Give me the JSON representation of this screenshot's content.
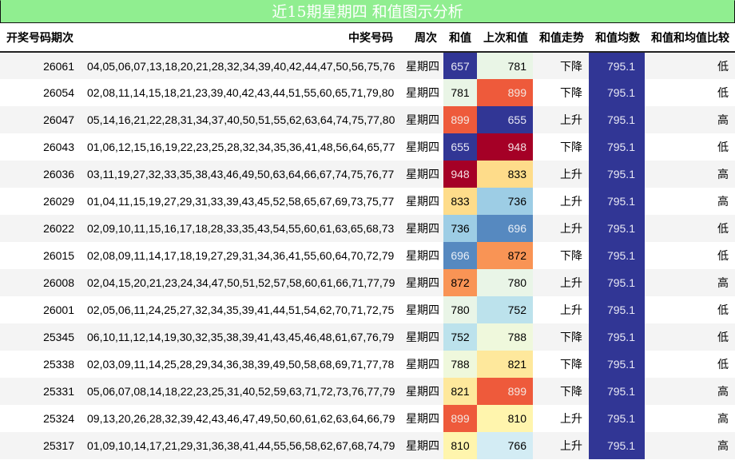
{
  "title": "近15期星期四 和值图示分析",
  "headers": {
    "period": "开奖号码期次",
    "numbers": "中奖号码",
    "weekday": "周次",
    "sum": "和值",
    "prev_sum": "上次和值",
    "trend": "和值走势",
    "mean": "和值均数",
    "compare": "和值和均值比较"
  },
  "rows": [
    {
      "period": "26061",
      "numbers": "04,05,06,07,13,18,20,21,28,32,34,39,40,42,44,47,50,56,75,76",
      "weekday": "星期四",
      "sum": "657",
      "sum_bg": "#313695",
      "sum_fg": "#e8e8f4",
      "prev_sum": "781",
      "prev_bg": "#e9f5e6",
      "prev_fg": "#000000",
      "trend": "下降",
      "mean": "795.1",
      "compare": "低"
    },
    {
      "period": "26054",
      "numbers": "02,08,11,14,15,18,21,23,39,40,42,43,44,51,55,60,65,71,79,80",
      "weekday": "星期四",
      "sum": "781",
      "sum_bg": "#e9f5e6",
      "sum_fg": "#000000",
      "prev_sum": "899",
      "prev_bg": "#ee5a3b",
      "prev_fg": "#f4e6e0",
      "trend": "下降",
      "mean": "795.1",
      "compare": "低"
    },
    {
      "period": "26047",
      "numbers": "05,14,16,21,22,28,31,34,37,40,50,51,55,62,63,64,74,75,77,80",
      "weekday": "星期四",
      "sum": "899",
      "sum_bg": "#ee5a3b",
      "sum_fg": "#f4e6e0",
      "prev_sum": "655",
      "prev_bg": "#313695",
      "prev_fg": "#e8e8f4",
      "trend": "上升",
      "mean": "795.1",
      "compare": "高"
    },
    {
      "period": "26043",
      "numbers": "01,06,12,15,16,19,22,23,25,28,32,34,35,36,41,48,56,64,65,77",
      "weekday": "星期四",
      "sum": "655",
      "sum_bg": "#313695",
      "sum_fg": "#e8e8f4",
      "prev_sum": "948",
      "prev_bg": "#a50026",
      "prev_fg": "#f4e0e4",
      "trend": "下降",
      "mean": "795.1",
      "compare": "低"
    },
    {
      "period": "26036",
      "numbers": "03,11,19,27,32,33,35,38,43,46,49,50,63,64,66,67,74,75,76,77",
      "weekday": "星期四",
      "sum": "948",
      "sum_bg": "#a50026",
      "sum_fg": "#f4e0e4",
      "prev_sum": "833",
      "prev_bg": "#fedc8a",
      "prev_fg": "#000000",
      "trend": "上升",
      "mean": "795.1",
      "compare": "高"
    },
    {
      "period": "26029",
      "numbers": "01,04,11,15,19,27,29,31,33,39,43,45,52,58,65,67,69,73,75,77",
      "weekday": "星期四",
      "sum": "833",
      "sum_bg": "#fedc8a",
      "sum_fg": "#000000",
      "prev_sum": "736",
      "prev_bg": "#9dcde5",
      "prev_fg": "#000000",
      "trend": "上升",
      "mean": "795.1",
      "compare": "高"
    },
    {
      "period": "26022",
      "numbers": "02,09,10,11,15,16,17,18,28,33,35,43,54,55,60,61,63,65,68,73",
      "weekday": "星期四",
      "sum": "736",
      "sum_bg": "#9dcde5",
      "sum_fg": "#000000",
      "prev_sum": "696",
      "prev_bg": "#5689c0",
      "prev_fg": "#e8eef6",
      "trend": "上升",
      "mean": "795.1",
      "compare": "低"
    },
    {
      "period": "26015",
      "numbers": "02,08,09,11,14,17,18,19,27,29,31,34,36,41,55,60,64,70,72,79",
      "weekday": "星期四",
      "sum": "696",
      "sum_bg": "#5689c0",
      "sum_fg": "#e8eef6",
      "prev_sum": "872",
      "prev_bg": "#f99455",
      "prev_fg": "#000000",
      "trend": "下降",
      "mean": "795.1",
      "compare": "低"
    },
    {
      "period": "26008",
      "numbers": "02,04,15,20,21,23,24,34,47,50,51,52,57,58,60,61,66,71,77,79",
      "weekday": "星期四",
      "sum": "872",
      "sum_bg": "#f99455",
      "sum_fg": "#000000",
      "prev_sum": "780",
      "prev_bg": "#e9f5e7",
      "prev_fg": "#000000",
      "trend": "上升",
      "mean": "795.1",
      "compare": "高"
    },
    {
      "period": "26001",
      "numbers": "02,05,06,11,24,25,27,32,34,35,39,41,44,51,54,62,70,71,72,75",
      "weekday": "星期四",
      "sum": "780",
      "sum_bg": "#e9f5e7",
      "sum_fg": "#000000",
      "prev_sum": "752",
      "prev_bg": "#bce2ec",
      "prev_fg": "#000000",
      "trend": "上升",
      "mean": "795.1",
      "compare": "低"
    },
    {
      "period": "25345",
      "numbers": "06,10,11,12,14,19,30,32,35,38,39,41,43,45,46,48,61,67,76,79",
      "weekday": "星期四",
      "sum": "752",
      "sum_bg": "#bce2ec",
      "sum_fg": "#000000",
      "prev_sum": "788",
      "prev_bg": "#eff8dc",
      "prev_fg": "#000000",
      "trend": "下降",
      "mean": "795.1",
      "compare": "低"
    },
    {
      "period": "25338",
      "numbers": "02,03,09,11,14,25,28,29,34,36,38,39,49,50,58,68,69,71,77,78",
      "weekday": "星期四",
      "sum": "788",
      "sum_bg": "#eff8dc",
      "sum_fg": "#000000",
      "prev_sum": "821",
      "prev_bg": "#fee89c",
      "prev_fg": "#000000",
      "trend": "下降",
      "mean": "795.1",
      "compare": "低"
    },
    {
      "period": "25331",
      "numbers": "05,06,07,08,14,18,22,23,25,31,40,52,59,63,71,72,73,76,77,79",
      "weekday": "星期四",
      "sum": "821",
      "sum_bg": "#fee89c",
      "sum_fg": "#000000",
      "prev_sum": "899",
      "prev_bg": "#ee5a3b",
      "prev_fg": "#f4e6e0",
      "trend": "下降",
      "mean": "795.1",
      "compare": "高"
    },
    {
      "period": "25324",
      "numbers": "09,13,20,26,28,32,39,42,43,46,47,49,50,60,61,62,63,64,66,79",
      "weekday": "星期四",
      "sum": "899",
      "sum_bg": "#ee5a3b",
      "sum_fg": "#f4e6e0",
      "prev_sum": "810",
      "prev_bg": "#fff5ad",
      "prev_fg": "#000000",
      "trend": "上升",
      "mean": "795.1",
      "compare": "高"
    },
    {
      "period": "25317",
      "numbers": "01,09,10,14,17,21,29,31,36,38,41,44,55,56,58,62,67,68,74,79",
      "weekday": "星期四",
      "sum": "810",
      "sum_bg": "#fff5ad",
      "sum_fg": "#000000",
      "prev_sum": "766",
      "prev_bg": "#d3ecf4",
      "prev_fg": "#000000",
      "trend": "上升",
      "mean": "795.1",
      "compare": "高"
    }
  ],
  "colors": {
    "title_bg": "#90ee90",
    "title_fg": "#ffffff",
    "mean_bg": "#313695"
  }
}
